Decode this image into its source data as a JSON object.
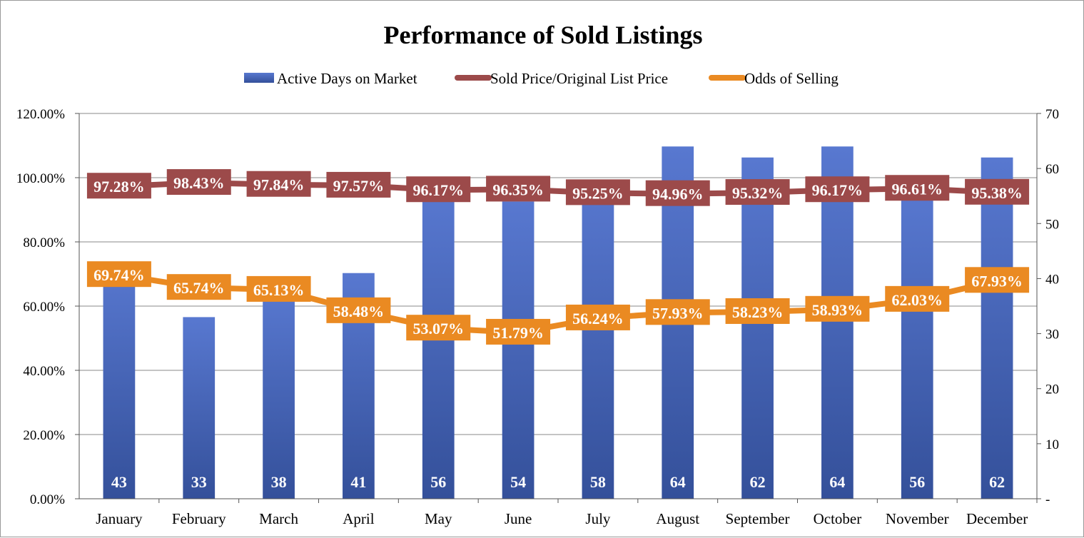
{
  "chart_data": {
    "type": "bar",
    "title": "Performance of Sold Listings",
    "categories": [
      "January",
      "February",
      "March",
      "April",
      "May",
      "June",
      "July",
      "August",
      "September",
      "October",
      "November",
      "December"
    ],
    "series": [
      {
        "name": "Active Days on Market",
        "kind": "bar",
        "axis": "right",
        "values": [
          43,
          33,
          38,
          41,
          56,
          54,
          58,
          64,
          62,
          64,
          56,
          62
        ],
        "labels": [
          "43",
          "33",
          "38",
          "41",
          "56",
          "54",
          "58",
          "64",
          "62",
          "64",
          "56",
          "62"
        ],
        "color": "#4a6ac2"
      },
      {
        "name": "Sold Price/Original List Price",
        "kind": "line",
        "axis": "left",
        "values": [
          97.28,
          98.43,
          97.84,
          97.57,
          96.17,
          96.35,
          95.25,
          94.96,
          95.32,
          96.17,
          96.61,
          95.38
        ],
        "labels": [
          "97.28%",
          "98.43%",
          "97.84%",
          "97.57%",
          "96.17%",
          "96.35%",
          "95.25%",
          "94.96%",
          "95.32%",
          "96.17%",
          "96.61%",
          "95.38%"
        ],
        "color": "#9c4a4a"
      },
      {
        "name": "Odds of Selling",
        "kind": "line",
        "axis": "left",
        "values": [
          69.74,
          65.74,
          65.13,
          58.48,
          53.07,
          51.79,
          56.24,
          57.93,
          58.23,
          58.93,
          62.03,
          67.93
        ],
        "labels": [
          "69.74%",
          "65.74%",
          "65.13%",
          "58.48%",
          "53.07%",
          "51.79%",
          "56.24%",
          "57.93%",
          "58.23%",
          "58.93%",
          "62.03%",
          "67.93%"
        ],
        "color": "#ea8a22"
      }
    ],
    "y_left": {
      "range": [
        0,
        120
      ],
      "ticks": [
        0,
        20,
        40,
        60,
        80,
        100,
        120
      ],
      "tick_labels": [
        "0.00%",
        "20.00%",
        "40.00%",
        "60.00%",
        "80.00%",
        "100.00%",
        "120.00%"
      ]
    },
    "y_right": {
      "range": [
        0,
        70
      ],
      "ticks": [
        0,
        10,
        20,
        30,
        40,
        50,
        60,
        70
      ],
      "tick_labels": [
        "-",
        "10",
        "20",
        "30",
        "40",
        "50",
        "60",
        "70"
      ]
    },
    "grid": true,
    "legend": "top"
  }
}
